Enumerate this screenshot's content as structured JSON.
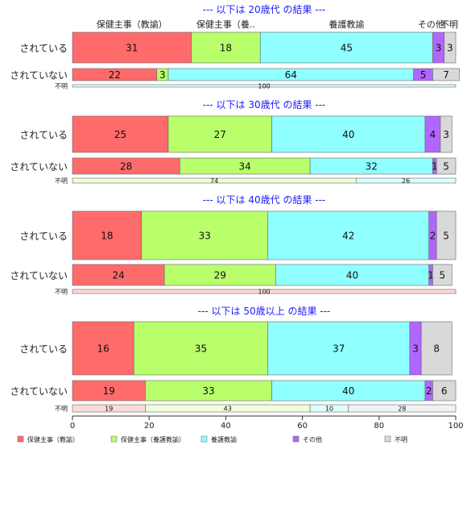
{
  "chart_data": {
    "type": "bar",
    "orientation": "horizontal",
    "stacked": true,
    "xlim": [
      0,
      100
    ],
    "x_ticks": [
      0,
      20,
      40,
      60,
      80,
      100
    ],
    "category_header": [
      "保健主事（教諭）",
      "保健主事（養..",
      "養護教諭",
      "その他",
      "不明"
    ],
    "groups": [
      {
        "title": "--- 以下は 20歳代 の結果 ---",
        "rows": [
          {
            "label": "されている",
            "values": [
              31,
              18,
              45,
              3,
              3
            ],
            "labels": [
              "31",
              "18",
              "45",
              "3",
              "3"
            ]
          },
          {
            "label": "されていない",
            "values": [
              22,
              3,
              64,
              5,
              7
            ],
            "labels": [
              "22",
              "3",
              "64",
              "5",
              "7"
            ]
          },
          {
            "label": "不明",
            "values": [
              0,
              0,
              100,
              0,
              0
            ],
            "labels": [
              "",
              "",
              "100",
              "",
              ""
            ]
          }
        ]
      },
      {
        "title": "--- 以下は 30歳代 の結果 ---",
        "rows": [
          {
            "label": "されている",
            "values": [
              25,
              27,
              40,
              4,
              3
            ],
            "labels": [
              "25",
              "27",
              "40",
              "4",
              "3"
            ]
          },
          {
            "label": "されていない",
            "values": [
              28,
              34,
              32,
              1,
              5
            ],
            "labels": [
              "28",
              "34",
              "32",
              "1",
              "5"
            ]
          },
          {
            "label": "不明",
            "values": [
              0,
              74,
              26,
              0,
              0
            ],
            "labels": [
              "",
              "74",
              "26",
              "",
              ""
            ]
          }
        ]
      },
      {
        "title": "--- 以下は 40歳代 の結果 ---",
        "rows": [
          {
            "label": "されている",
            "values": [
              18,
              33,
              42,
              2,
              5
            ],
            "labels": [
              "18",
              "33",
              "42",
              "2",
              "5"
            ]
          },
          {
            "label": "されていない",
            "values": [
              24,
              29,
              40,
              1,
              5
            ],
            "labels": [
              "24",
              "29",
              "40",
              "1",
              "5"
            ]
          },
          {
            "label": "不明",
            "values": [
              100,
              0,
              0,
              0,
              0
            ],
            "labels": [
              "100",
              "",
              "",
              "",
              ""
            ]
          }
        ]
      },
      {
        "title": "--- 以下は 50歳以上 の結果 ---",
        "rows": [
          {
            "label": "されている",
            "values": [
              16,
              35,
              37,
              3,
              8
            ],
            "labels": [
              "16",
              "35",
              "37",
              "3",
              "8"
            ]
          },
          {
            "label": "されていない",
            "values": [
              19,
              33,
              40,
              2,
              6
            ],
            "labels": [
              "19",
              "33",
              "40",
              "2",
              "6"
            ]
          },
          {
            "label": "不明",
            "values": [
              19,
              43,
              10,
              0,
              28
            ],
            "labels": [
              "19",
              "43",
              "10",
              "",
              "28"
            ]
          }
        ]
      }
    ],
    "series": [
      {
        "name": "保健主事（教諭）",
        "color": "#ff6b6b",
        "color_light": "#ffd9d9"
      },
      {
        "name": "保健主事（養護教諭）",
        "color": "#b8ff6b",
        "color_light": "#efffd9"
      },
      {
        "name": "養護教諭",
        "color": "#90ffff",
        "color_light": "#dcffff"
      },
      {
        "name": "その他",
        "color": "#b066ff",
        "color_light": "#ead9ff"
      },
      {
        "name": "不明",
        "color": "#d9d9d9",
        "color_light": "#f2f2f2"
      }
    ],
    "legend_position": "bottom",
    "title_color": "#1a1aff"
  }
}
